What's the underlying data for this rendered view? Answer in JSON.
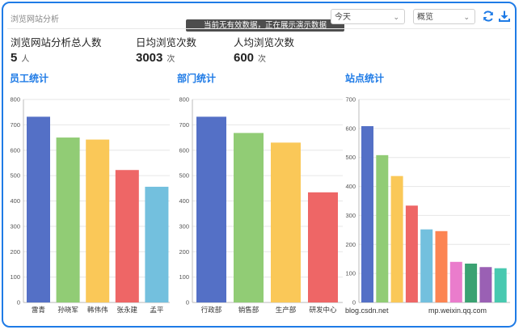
{
  "header": {
    "title": "浏览网站分析",
    "toast": "当前无有效数据，正在展示演示数据"
  },
  "filters": {
    "period": "今天",
    "view": "概览"
  },
  "icons": {
    "refresh": "refresh-icon",
    "download": "download-icon",
    "chevron": "chevron-down-icon"
  },
  "stats": [
    {
      "label": "浏览网站分析总人数",
      "value": "5",
      "unit": "人"
    },
    {
      "label": "日均浏览次数",
      "value": "3003",
      "unit": "次"
    },
    {
      "label": "人均浏览次数",
      "value": "600",
      "unit": "次"
    }
  ],
  "watermarks": [
    "blog.csdn.net",
    "mp.weixin.qq.com"
  ],
  "chart_data": [
    {
      "type": "bar",
      "title": "员工统计",
      "categories": [
        "雷青",
        "孙晓军",
        "韩伟伟",
        "张永建",
        "孟平"
      ],
      "values": [
        732,
        650,
        642,
        522,
        456
      ],
      "ylim": [
        0,
        800
      ],
      "yticks": [
        "0",
        "100",
        "200",
        "300",
        "400",
        "500",
        "600",
        "700",
        "800"
      ],
      "colors": [
        "#5470c6",
        "#91cc75",
        "#fac858",
        "#ee6666",
        "#73c0de"
      ]
    },
    {
      "type": "bar",
      "title": "部门统计",
      "categories": [
        "行政部",
        "销售部",
        "生产部",
        "研发中心"
      ],
      "values": [
        732,
        668,
        630,
        434
      ],
      "ylim": [
        0,
        800
      ],
      "yticks": [
        "0",
        "100",
        "200",
        "300",
        "400",
        "500",
        "600",
        "700",
        "800"
      ],
      "colors": [
        "#5470c6",
        "#91cc75",
        "#fac858",
        "#ee6666"
      ]
    },
    {
      "type": "bar",
      "title": "站点统计",
      "categories": [
        "",
        "",
        "",
        "",
        "",
        "",
        "",
        "",
        "",
        ""
      ],
      "values": [
        608,
        508,
        436,
        334,
        252,
        246,
        140,
        134,
        122,
        118
      ],
      "ylim": [
        0,
        700
      ],
      "yticks": [
        "0",
        "100",
        "200",
        "300",
        "400",
        "500",
        "600",
        "700"
      ],
      "colors": [
        "#5470c6",
        "#91cc75",
        "#fac858",
        "#ee6666",
        "#73c0de",
        "#fc8452",
        "#ea7ccc",
        "#3ba272",
        "#9a60b4",
        "#48c9b0"
      ]
    }
  ],
  "colors": {
    "accent": "#1f7be6"
  }
}
